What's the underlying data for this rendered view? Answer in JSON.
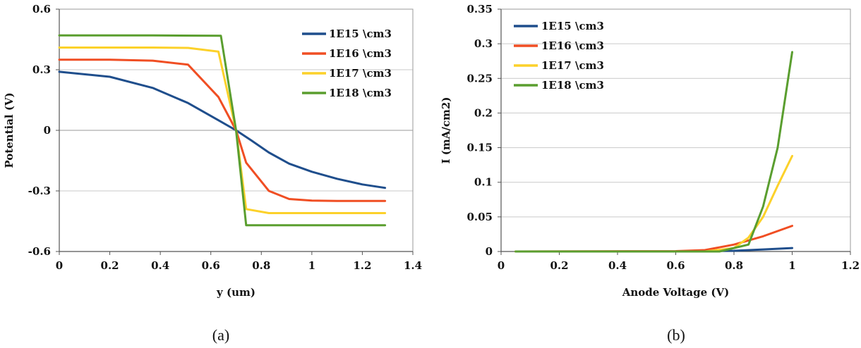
{
  "chart_data": [
    {
      "type": "line",
      "caption": "(a)",
      "xlabel": "y (um)",
      "ylabel": "Potential (V)",
      "xlim": [
        0,
        1.4
      ],
      "ylim": [
        -0.6,
        0.6
      ],
      "xticks": [
        0,
        0.2,
        0.4,
        0.6,
        0.8,
        1,
        1.2,
        1.4
      ],
      "xtick_labels": [
        "0",
        "0.2",
        "0.4",
        "0.6",
        "0.8",
        "1",
        "1.2",
        "1.4"
      ],
      "yticks": [
        -0.6,
        -0.3,
        0,
        0.3,
        0.6
      ],
      "ytick_labels": [
        "-0.6",
        "-0.3",
        "0",
        "0.3",
        "0.6"
      ],
      "grid": "horizontal",
      "legend": "top-right",
      "series": [
        {
          "name": "1E15 \\cm3",
          "color": "#1f4e8c",
          "points": [
            [
              0,
              0.29
            ],
            [
              0.2,
              0.265
            ],
            [
              0.37,
              0.21
            ],
            [
              0.51,
              0.135
            ],
            [
              0.63,
              0.05
            ],
            [
              0.7,
              0
            ],
            [
              0.76,
              -0.05
            ],
            [
              0.83,
              -0.11
            ],
            [
              0.91,
              -0.165
            ],
            [
              1.0,
              -0.205
            ],
            [
              1.1,
              -0.24
            ],
            [
              1.2,
              -0.268
            ],
            [
              1.29,
              -0.285
            ]
          ]
        },
        {
          "name": "1E16 \\cm3",
          "color": "#f04e23",
          "points": [
            [
              0,
              0.35
            ],
            [
              0.2,
              0.35
            ],
            [
              0.37,
              0.345
            ],
            [
              0.51,
              0.325
            ],
            [
              0.63,
              0.165
            ],
            [
              0.7,
              0
            ],
            [
              0.74,
              -0.16
            ],
            [
              0.83,
              -0.3
            ],
            [
              0.91,
              -0.34
            ],
            [
              1.0,
              -0.348
            ],
            [
              1.1,
              -0.35
            ],
            [
              1.29,
              -0.35
            ]
          ]
        },
        {
          "name": "1E17 \\cm3",
          "color": "#fcd12a",
          "points": [
            [
              0,
              0.41
            ],
            [
              0.2,
              0.41
            ],
            [
              0.37,
              0.41
            ],
            [
              0.51,
              0.408
            ],
            [
              0.63,
              0.39
            ],
            [
              0.7,
              0
            ],
            [
              0.74,
              -0.39
            ],
            [
              0.83,
              -0.41
            ],
            [
              1.0,
              -0.41
            ],
            [
              1.29,
              -0.41
            ]
          ]
        },
        {
          "name": "1E18 \\cm3",
          "color": "#5a9e2f",
          "points": [
            [
              0,
              0.47
            ],
            [
              0.37,
              0.47
            ],
            [
              0.64,
              0.468
            ],
            [
              0.7,
              0
            ],
            [
              0.74,
              -0.47
            ],
            [
              1.0,
              -0.47
            ],
            [
              1.29,
              -0.47
            ]
          ]
        }
      ]
    },
    {
      "type": "line",
      "caption": "(b)",
      "xlabel": "Anode Voltage (V)",
      "ylabel": "I (mA/cm2)",
      "xlim": [
        0,
        1.2
      ],
      "ylim": [
        0,
        0.35
      ],
      "xticks": [
        0,
        0.2,
        0.4,
        0.6,
        0.8,
        1,
        1.2
      ],
      "xtick_labels": [
        "0",
        "0.2",
        "0.4",
        "0.6",
        "0.8",
        "1",
        "1.2"
      ],
      "yticks": [
        0,
        0.05,
        0.1,
        0.15,
        0.2,
        0.25,
        0.3,
        0.35
      ],
      "ytick_labels": [
        "0",
        "0.05",
        "0.1",
        "0.15",
        "0.2",
        "0.25",
        "0.3",
        "0.35"
      ],
      "grid": "horizontal",
      "legend": "top-left",
      "series": [
        {
          "name": "1E15 \\cm3",
          "color": "#1f4e8c",
          "points": [
            [
              0.05,
              0
            ],
            [
              0.6,
              0
            ],
            [
              0.8,
              0.001
            ],
            [
              0.9,
              0.003
            ],
            [
              1.0,
              0.005
            ]
          ]
        },
        {
          "name": "1E16 \\cm3",
          "color": "#f04e23",
          "points": [
            [
              0.05,
              0
            ],
            [
              0.6,
              0.0005
            ],
            [
              0.7,
              0.002
            ],
            [
              0.8,
              0.01
            ],
            [
              0.9,
              0.022
            ],
            [
              1.0,
              0.037
            ]
          ]
        },
        {
          "name": "1E17 \\cm3",
          "color": "#fcd12a",
          "points": [
            [
              0.05,
              0
            ],
            [
              0.7,
              0
            ],
            [
              0.8,
              0.005
            ],
            [
              0.85,
              0.02
            ],
            [
              0.9,
              0.05
            ],
            [
              0.95,
              0.095
            ],
            [
              1.0,
              0.138
            ]
          ]
        },
        {
          "name": "1E18 \\cm3",
          "color": "#5a9e2f",
          "points": [
            [
              0.05,
              0
            ],
            [
              0.75,
              0
            ],
            [
              0.85,
              0.01
            ],
            [
              0.9,
              0.065
            ],
            [
              0.95,
              0.15
            ],
            [
              1.0,
              0.288
            ]
          ]
        }
      ]
    }
  ]
}
